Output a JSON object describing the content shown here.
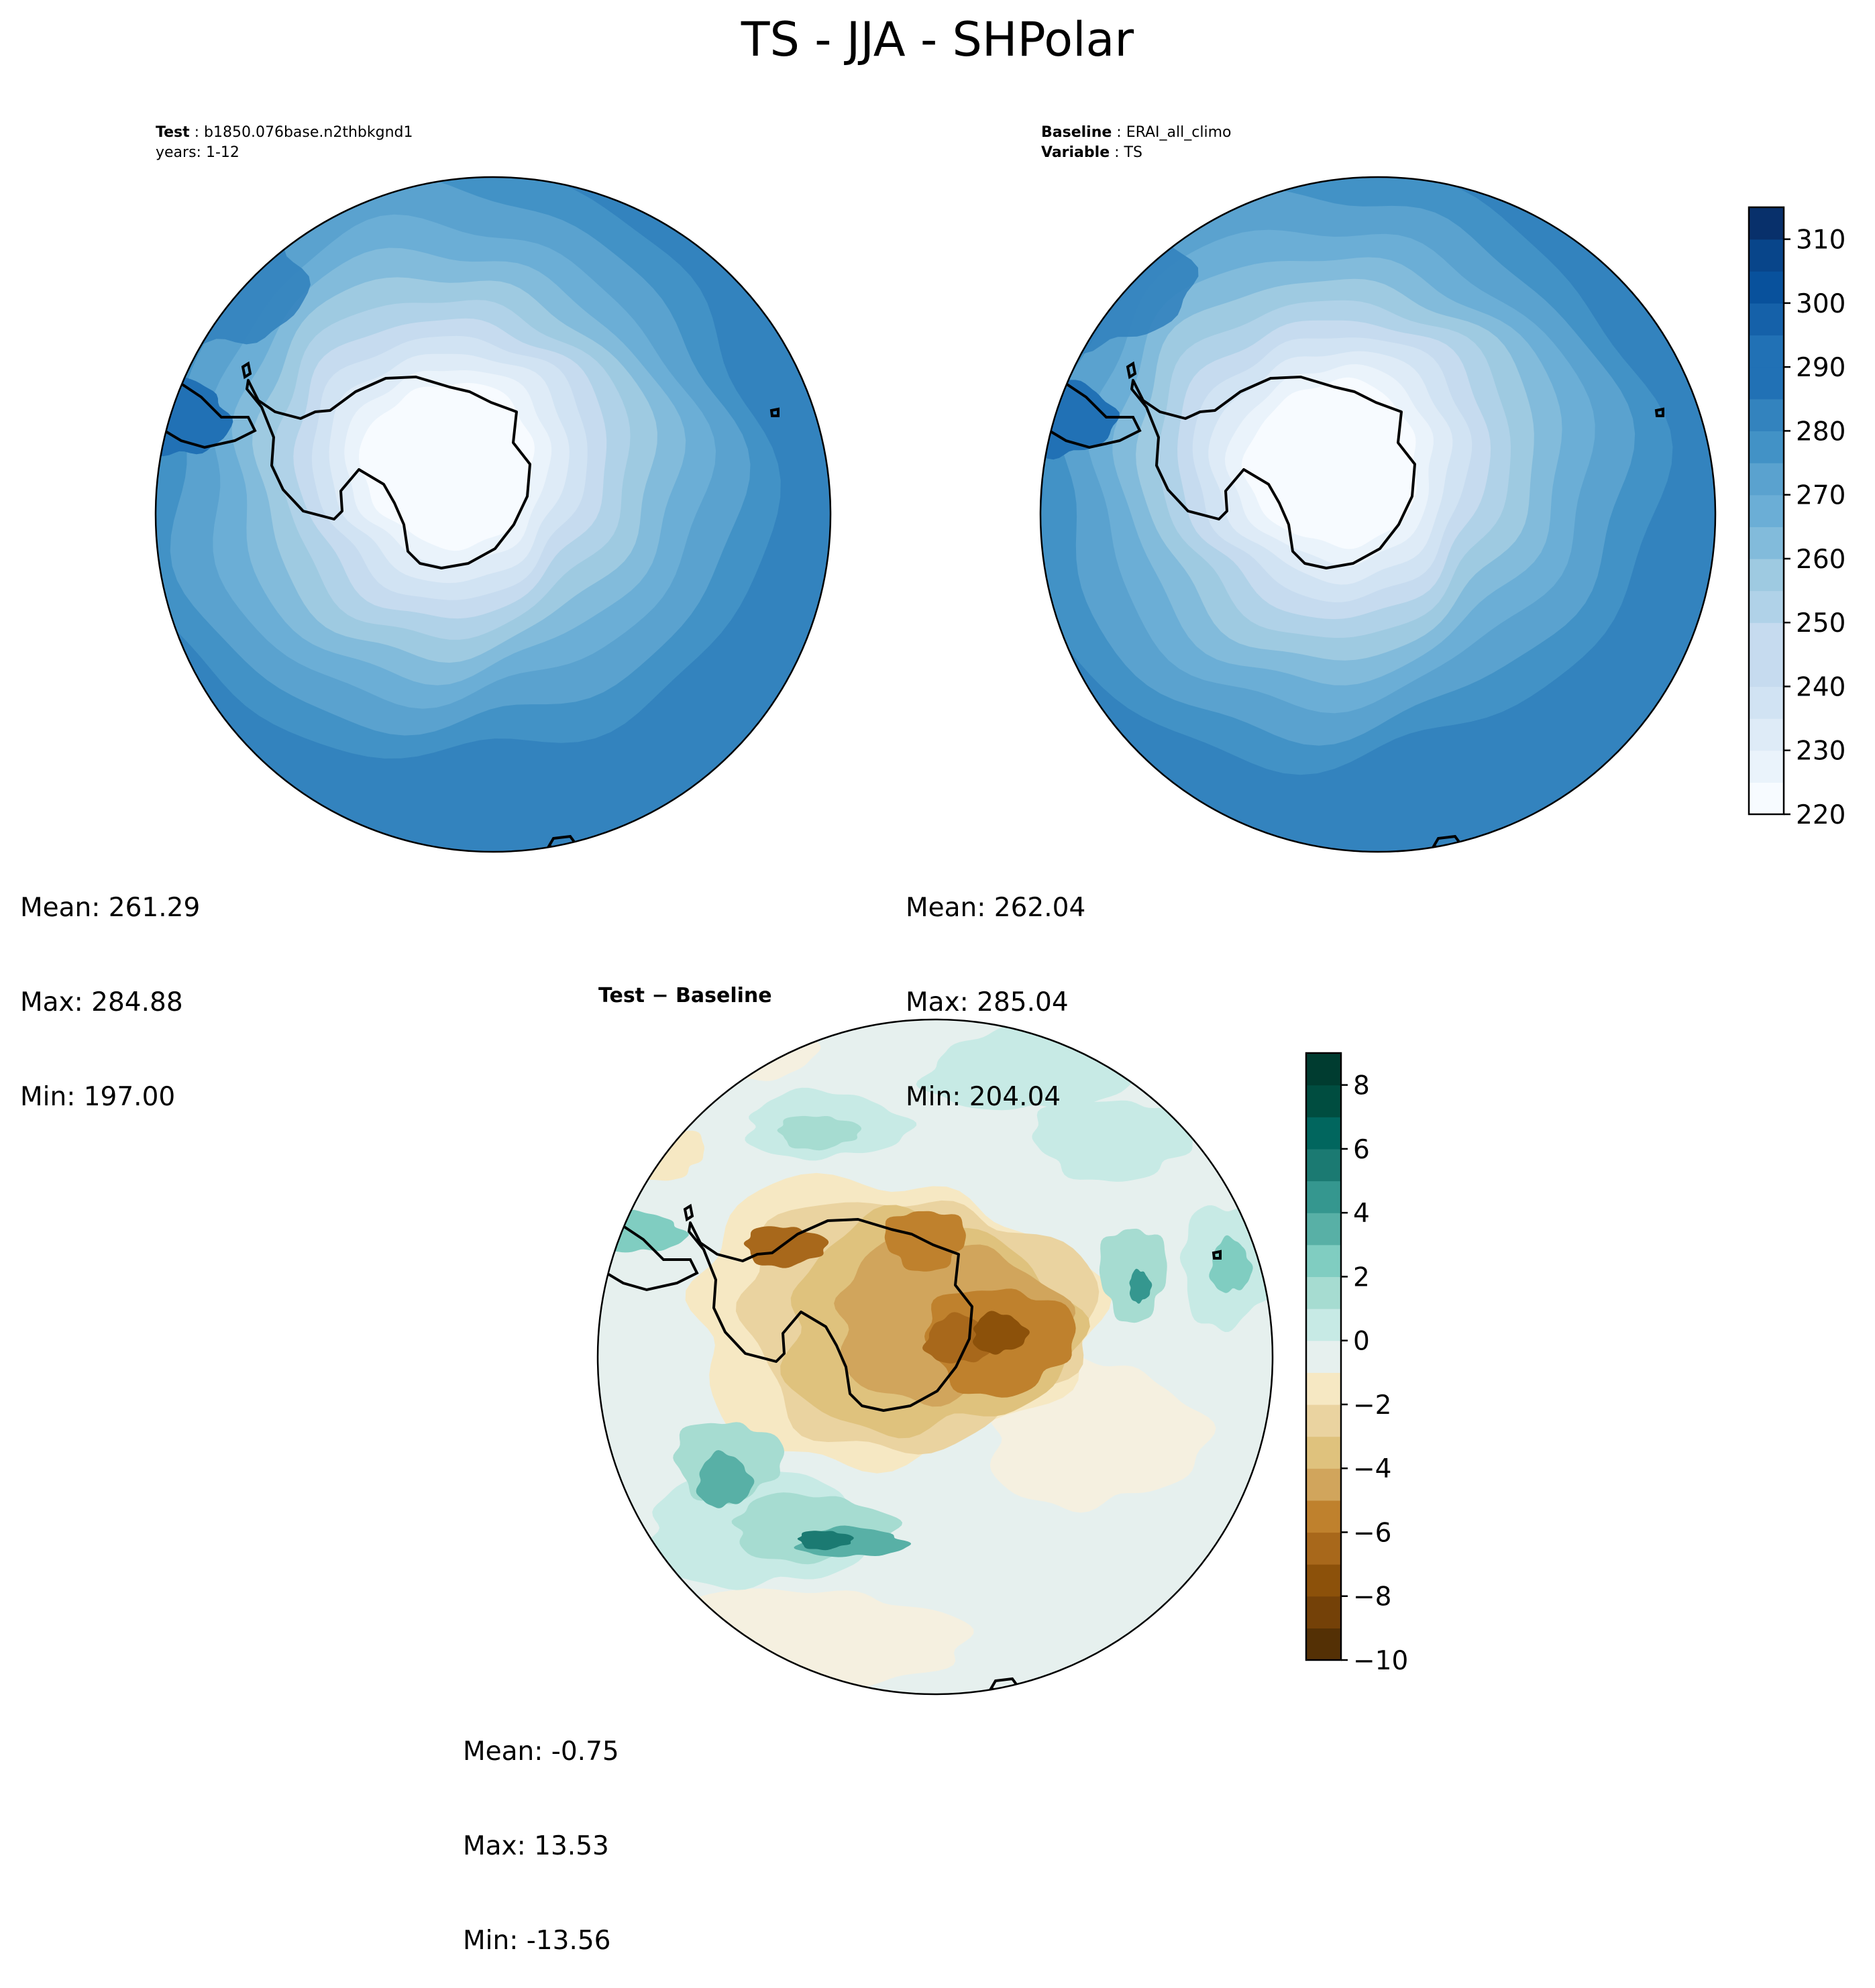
{
  "title": "TS - JJA - SHPolar",
  "test_panel": {
    "meta_line1_key": "Test",
    "meta_line1_val": "b1850.076base.n2thbkgnd1",
    "meta_line2": "years: 1-12",
    "mean": "Mean: 261.29",
    "max": "Max: 284.88",
    "min": "Min: 197.00"
  },
  "baseline_panel": {
    "meta_line1_key": "Baseline",
    "meta_line1_val": "ERAI_all_climo",
    "meta_line2_key": "Variable",
    "meta_line2_val": "TS",
    "mean": "Mean: 262.04",
    "max": "Max: 285.04",
    "min": "Min: 204.04"
  },
  "diff_panel": {
    "title": "Test − Baseline",
    "mean": "Mean: -0.75",
    "max": "Max: 13.53",
    "min": "Min: -13.56"
  },
  "colors": {
    "blues": [
      "#f7fbff",
      "#eaf3fb",
      "#deebf7",
      "#d1e3f3",
      "#c6dbef",
      "#b0d2e8",
      "#9ecae1",
      "#82bbdb",
      "#6baed6",
      "#5aa2cf",
      "#4292c6",
      "#3383be",
      "#2171b5",
      "#1561a9",
      "#08519c",
      "#08458a",
      "#08306b"
    ],
    "brbg": [
      "#543005",
      "#744108",
      "#8c510a",
      "#a8681b",
      "#bf812d",
      "#d1a55c",
      "#dfc27d",
      "#ead3a0",
      "#f6e8c3",
      "#f5f0e0",
      "#e6f0ee",
      "#c7eae5",
      "#a6dcd1",
      "#80cdc1",
      "#58b0a6",
      "#35978f",
      "#1b7a72",
      "#01665e",
      "#004d40",
      "#003c30"
    ]
  },
  "chart_data": [
    {
      "type": "heatmap",
      "title": "Test: b1850.076base.n2thbkgnd1",
      "subtitle": "years: 1-12",
      "variable": "TS",
      "projection": "south polar stereographic",
      "colorbar": {
        "ticks": [
          220,
          230,
          240,
          250,
          260,
          270,
          280,
          290,
          300,
          310
        ],
        "range": [
          220,
          315
        ]
      },
      "stats": {
        "mean": 261.29,
        "max": 284.88,
        "min": 197.0
      }
    },
    {
      "type": "heatmap",
      "title": "Baseline: ERAI_all_climo",
      "subtitle": "Variable: TS",
      "variable": "TS",
      "projection": "south polar stereographic",
      "colorbar": {
        "ticks": [
          220,
          230,
          240,
          250,
          260,
          270,
          280,
          290,
          300,
          310
        ],
        "range": [
          220,
          315
        ]
      },
      "stats": {
        "mean": 262.04,
        "max": 285.04,
        "min": 204.04
      }
    },
    {
      "type": "heatmap",
      "title": "Test − Baseline",
      "projection": "south polar stereographic",
      "colorbar": {
        "ticks": [
          -10,
          -8,
          -6,
          -4,
          -2,
          0,
          2,
          4,
          6,
          8
        ],
        "range": [
          -10,
          9
        ]
      },
      "stats": {
        "mean": -0.75,
        "max": 13.53,
        "min": -13.56
      }
    }
  ]
}
